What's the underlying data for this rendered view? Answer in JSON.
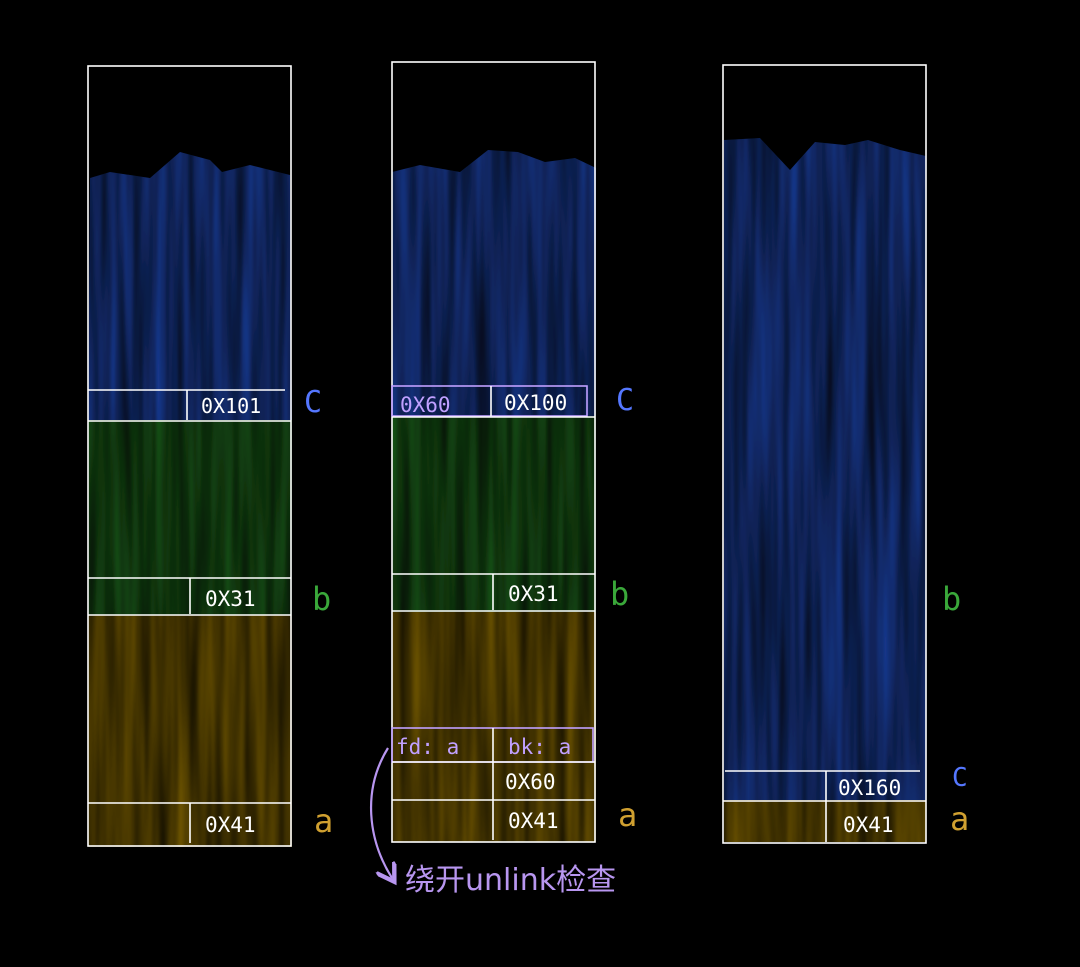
{
  "colors": {
    "background": "#000000",
    "blue": "#1f49b8",
    "green": "#1d6b1c",
    "yellow": "#8a6a08",
    "outline": "#ffffff",
    "label_c": "#5577ff",
    "label_b": "#3aa83a",
    "label_a": "#d0a030",
    "annotation": "#b896f0"
  },
  "diagram1": {
    "c_size": "0X101",
    "b_size": "0X31",
    "a_size": "0X41",
    "label_c": "C",
    "label_b": "b",
    "label_a": "a"
  },
  "diagram2": {
    "c_prev_size": "0X60",
    "c_size": "0X100",
    "b_size": "0X31",
    "fd": "fd: a",
    "bk": "bk: a",
    "fake_size": "0X60",
    "a_size": "0X41",
    "label_c": "C",
    "label_b": "b",
    "label_a": "a"
  },
  "diagram3": {
    "c_size": "0X160",
    "a_size": "0X41",
    "label_b": "b",
    "label_c": "C",
    "label_a": "a"
  },
  "annotation": "绕开unlink检查"
}
